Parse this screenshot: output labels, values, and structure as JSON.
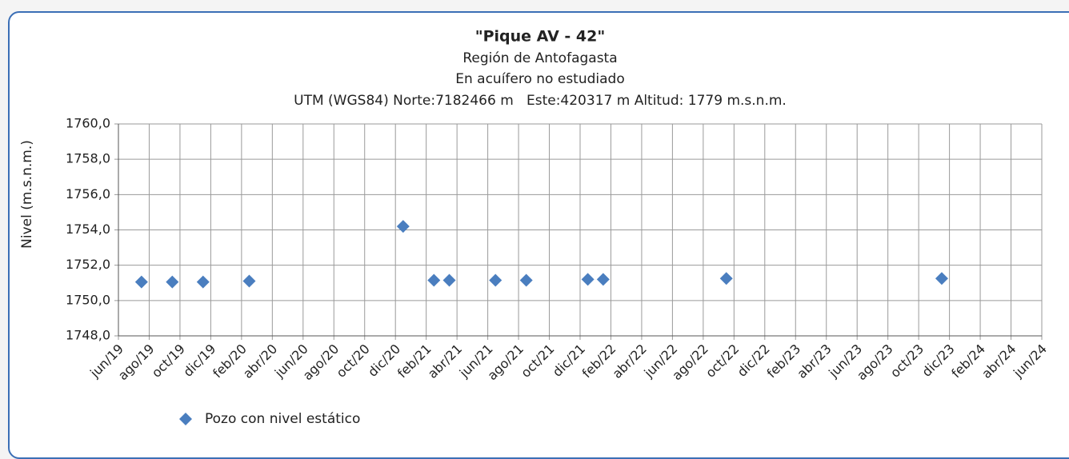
{
  "chart_data": {
    "type": "scatter",
    "title": "\"Pique AV - 42\"",
    "subtitle": [
      "Región de Antofagasta",
      "En acuífero no estudiado",
      "UTM (WGS84) Norte:7182466 m   Este:420317 m Altitud: 1779 m.s.n.m."
    ],
    "y_label": "Nivel (m.s.n.m.)",
    "xlim": [
      "jun/19",
      "jun/24"
    ],
    "xticks": [
      "jun/19",
      "ago/19",
      "oct/19",
      "dic/19",
      "feb/20",
      "abr/20",
      "jun/20",
      "ago/20",
      "oct/20",
      "dic/20",
      "feb/21",
      "abr/21",
      "jun/21",
      "ago/21",
      "oct/21",
      "dic/21",
      "feb/22",
      "abr/22",
      "jun/22",
      "ago/22",
      "oct/22",
      "dic/22",
      "feb/23",
      "abr/23",
      "jun/23",
      "ago/23",
      "oct/23",
      "dic/23",
      "feb/24",
      "abr/24",
      "jun/24"
    ],
    "ylim": [
      1748,
      1760
    ],
    "yticks": [
      {
        "value": 1748,
        "label": "1748,0"
      },
      {
        "value": 1750,
        "label": "1750,0"
      },
      {
        "value": 1752,
        "label": "1752,0"
      },
      {
        "value": 1754,
        "label": "1754,0"
      },
      {
        "value": 1756,
        "label": "1756,0"
      },
      {
        "value": 1758,
        "label": "1758,0"
      },
      {
        "value": 1760,
        "label": "1760,0"
      }
    ],
    "grid": true,
    "series": [
      {
        "name": "Pozo con nivel estático",
        "color": "#4a7ebf",
        "x": [
          "jul/19",
          "sep/19",
          "nov/19",
          "feb/20",
          "dic/20",
          "feb/21",
          "mar/21",
          "jun/21",
          "ago/21",
          "dic/21",
          "ene/22",
          "sep/22",
          "nov/23"
        ],
        "values": [
          1751.05,
          1751.05,
          1751.05,
          1751.1,
          1754.2,
          1751.15,
          1751.15,
          1751.15,
          1751.15,
          1751.2,
          1751.2,
          1751.25,
          1751.25
        ]
      }
    ]
  }
}
